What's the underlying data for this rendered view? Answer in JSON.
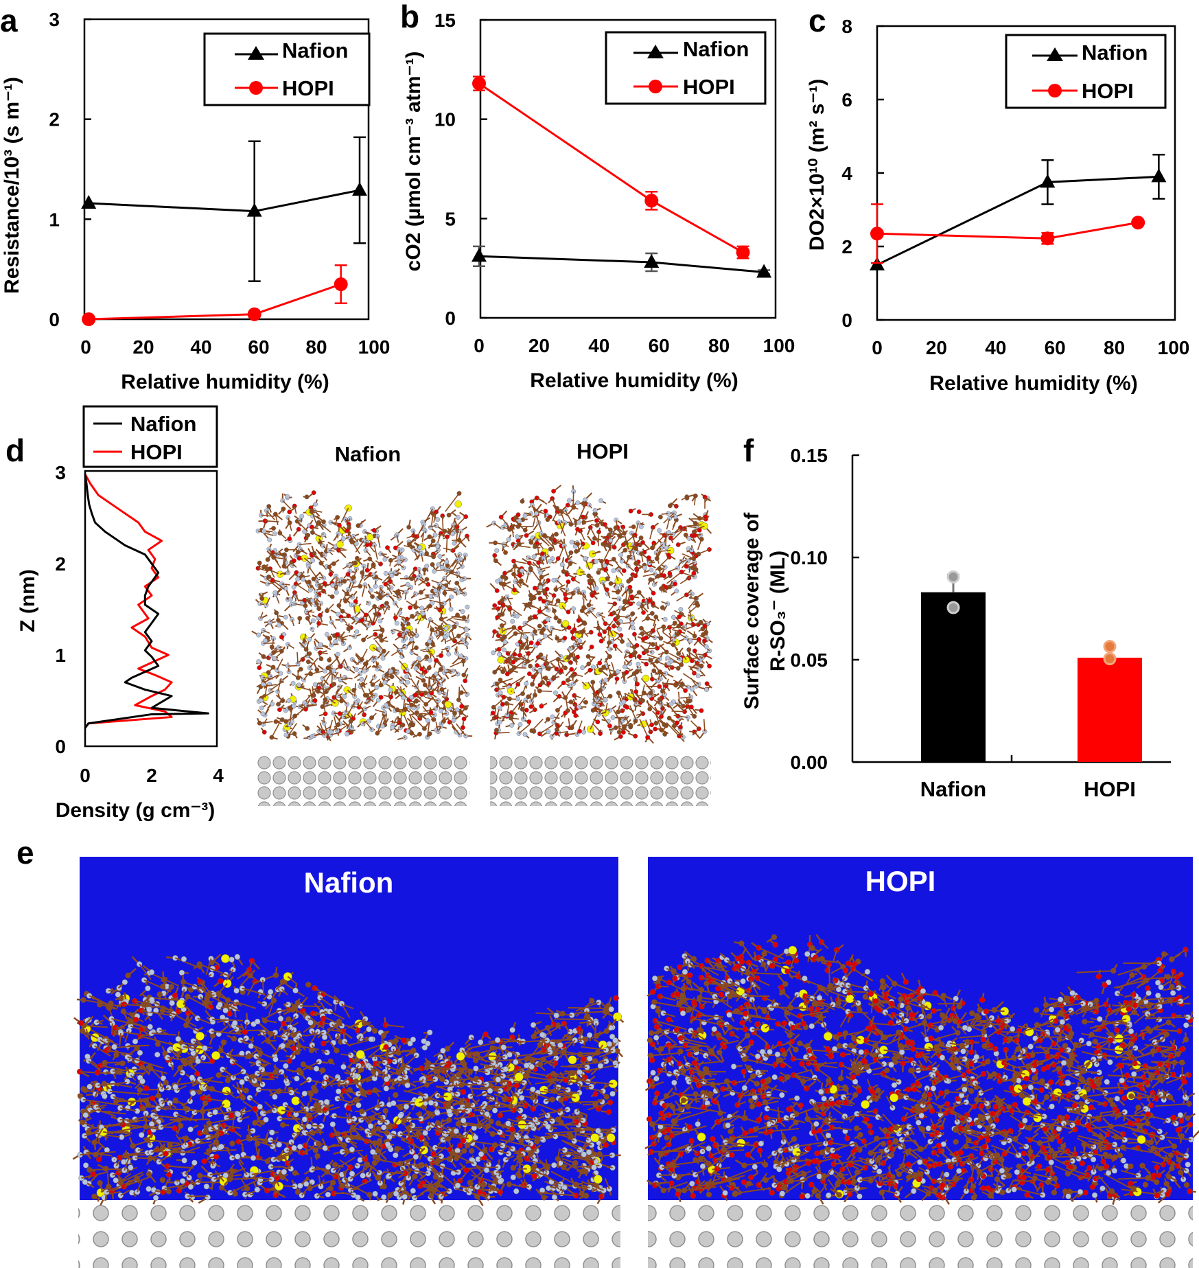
{
  "colors": {
    "nafion": "#000000",
    "hopi": "#ff0000",
    "hopi_marker": "#e47a3c",
    "water": "#1414e0",
    "carbon": "#8b4a1e",
    "oxygen": "#e00000",
    "fluorine": "#b8c4dc",
    "sulfur": "#f0f000",
    "platinum": "#b5b5b5"
  },
  "panels": {
    "a": {
      "label": "a",
      "ylabel": "Resistance/10³ (s m⁻¹)",
      "xlabel": "Relative humidity (%)"
    },
    "b": {
      "label": "b",
      "ylabel": "cO2 (µmol cm⁻³ atm⁻¹)",
      "xlabel": "Relative humidity (%)"
    },
    "c": {
      "label": "c",
      "ylabel": "DO2×10¹⁰ (m² s⁻¹)",
      "xlabel": "Relative humidity (%)"
    },
    "d": {
      "label": "d",
      "ylabel": "Z (nm)",
      "xlabel": "Density (g cm⁻³)",
      "snap_nafion": "Nafion",
      "snap_hopi": "HOPI"
    },
    "e": {
      "label": "e",
      "title_nafion": "Nafion",
      "title_hopi": "HOPI"
    },
    "f": {
      "label": "f",
      "ylabel_line1": "Surface coverage of",
      "ylabel_line2": "R-SO₃⁻ (ML)"
    }
  },
  "legend": {
    "nafion": "Nafion",
    "hopi": "HOPI"
  },
  "chart_data": [
    {
      "id": "a",
      "type": "line",
      "title": "",
      "xlabel": "Relative humidity (%)",
      "ylabel": "Resistance/10³ (s m⁻¹)",
      "xlim": [
        0,
        100
      ],
      "ylim": [
        0,
        3
      ],
      "xticks": [
        "0",
        "20",
        "40",
        "60",
        "80",
        "100"
      ],
      "yticks": [
        "0",
        "1",
        "2",
        "3"
      ],
      "series": [
        {
          "name": "Nafion",
          "marker": "triangle",
          "x": [
            1,
            58.5,
            95
          ],
          "y": [
            1.16,
            1.08,
            1.29
          ],
          "err": [
            0,
            0.7,
            0.53
          ]
        },
        {
          "name": "HOPI",
          "marker": "circle",
          "x": [
            1,
            58.5,
            88.5
          ],
          "y": [
            0.0,
            0.05,
            0.35
          ],
          "err": [
            0,
            0,
            0.19
          ]
        }
      ]
    },
    {
      "id": "b",
      "type": "line",
      "title": "",
      "xlabel": "Relative humidity (%)",
      "ylabel": "cO2 (µmol cm⁻³ atm⁻¹)",
      "xlim": [
        0,
        100
      ],
      "ylim": [
        0,
        15
      ],
      "xticks": [
        "0",
        "20",
        "40",
        "60",
        "80",
        "100"
      ],
      "yticks": [
        "0",
        "5",
        "10",
        "15"
      ],
      "series": [
        {
          "name": "Nafion",
          "marker": "triangle",
          "x": [
            0,
            57.5,
            95
          ],
          "y": [
            3.1,
            2.8,
            2.3
          ],
          "err": [
            0.5,
            0.45,
            0.1
          ]
        },
        {
          "name": "HOPI",
          "marker": "circle",
          "x": [
            0,
            57.5,
            88
          ],
          "y": [
            11.8,
            5.9,
            3.3
          ],
          "err": [
            0.35,
            0.45,
            0.3
          ]
        }
      ]
    },
    {
      "id": "c",
      "type": "line",
      "title": "",
      "xlabel": "Relative humidity (%)",
      "ylabel": "DO2×10¹⁰ (m² s⁻¹)",
      "xlim": [
        0,
        100
      ],
      "ylim": [
        0,
        8
      ],
      "xticks": [
        "0",
        "20",
        "40",
        "60",
        "80",
        "100"
      ],
      "yticks": [
        "0",
        "2",
        "4",
        "6",
        "8"
      ],
      "series": [
        {
          "name": "Nafion",
          "marker": "triangle",
          "x": [
            0,
            57.5,
            95
          ],
          "y": [
            1.5,
            3.75,
            3.9
          ],
          "err": [
            0,
            0.6,
            0.6
          ]
        },
        {
          "name": "HOPI",
          "marker": "circle",
          "x": [
            0,
            57.5,
            88
          ],
          "y": [
            2.35,
            2.22,
            2.65
          ],
          "err": [
            0.8,
            0.15,
            0
          ]
        }
      ]
    },
    {
      "id": "d",
      "type": "line",
      "title": "",
      "xlabel": "Density (g cm⁻³)",
      "ylabel": "Z (nm)",
      "xlim": [
        0,
        4
      ],
      "ylim": [
        0,
        3
      ],
      "xticks": [
        "0",
        "2",
        "4"
      ],
      "yticks": [
        "0",
        "1",
        "2",
        "3"
      ],
      "series": [
        {
          "name": "Nafion",
          "density": [
            0.0,
            0.1,
            2.0,
            3.7,
            2.0,
            2.6,
            1.8,
            1.2,
            1.4,
            2.2,
            2.0,
            1.8,
            2.0,
            1.8,
            2.0,
            2.2,
            1.8,
            1.8,
            1.9,
            2.2,
            2.0,
            1.8,
            1.2,
            0.6,
            0.3,
            0.2,
            0.12,
            0.08,
            0.04,
            0.0
          ],
          "z": [
            0.2,
            0.25,
            0.35,
            0.36,
            0.42,
            0.55,
            0.62,
            0.7,
            0.75,
            0.88,
            0.98,
            1.05,
            1.15,
            1.25,
            1.35,
            1.45,
            1.55,
            1.65,
            1.75,
            1.9,
            2.0,
            2.1,
            2.2,
            2.35,
            2.45,
            2.55,
            2.65,
            2.75,
            2.88,
            2.98
          ]
        },
        {
          "name": "HOPI",
          "density": [
            0.0,
            0.1,
            2.6,
            2.4,
            1.5,
            2.0,
            2.4,
            2.6,
            2.1,
            1.6,
            2.5,
            2.0,
            1.8,
            1.4,
            1.9,
            1.6,
            2.0,
            1.8,
            2.2,
            2.0,
            2.1,
            1.9,
            2.3,
            1.8,
            1.6,
            1.2,
            0.8,
            0.4,
            0.15,
            0.0
          ],
          "z": [
            0.2,
            0.25,
            0.32,
            0.38,
            0.45,
            0.55,
            0.62,
            0.7,
            0.78,
            0.85,
            1.0,
            1.08,
            1.2,
            1.3,
            1.4,
            1.55,
            1.65,
            1.75,
            1.85,
            1.95,
            2.05,
            2.15,
            2.25,
            2.35,
            2.45,
            2.55,
            2.65,
            2.75,
            2.88,
            2.98
          ]
        }
      ]
    },
    {
      "id": "f",
      "type": "bar",
      "title": "",
      "xlabel": "",
      "ylabel": "Surface coverage of R-SO₃⁻ (ML)",
      "categories": [
        "Nafion",
        "HOPI"
      ],
      "values": [
        0.083,
        0.051
      ],
      "points": [
        [
          0.0905,
          0.0755
        ],
        [
          0.0565,
          0.0505
        ]
      ],
      "err": [
        0.0085,
        0.0
      ],
      "ylim": [
        0,
        0.15
      ],
      "yticks": [
        "0.00",
        "0.05",
        "0.10",
        "0.15"
      ]
    }
  ]
}
